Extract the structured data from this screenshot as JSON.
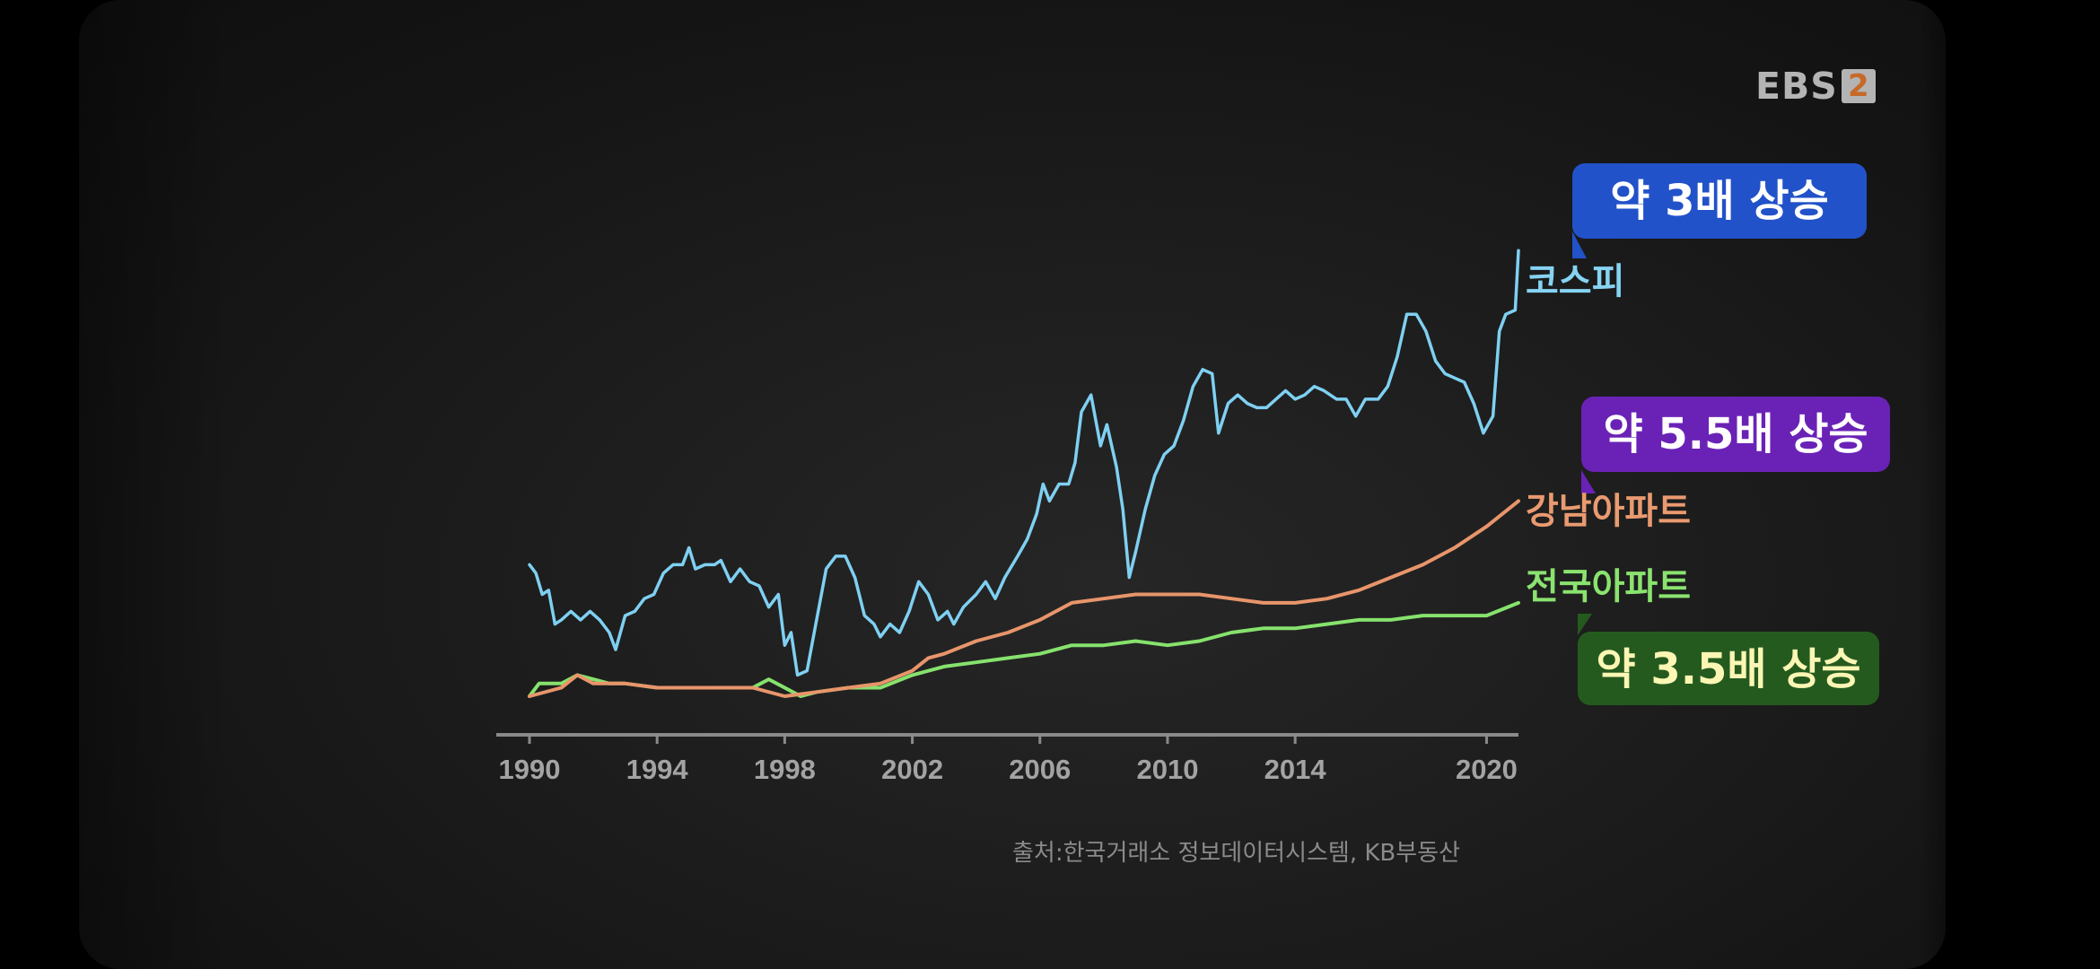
{
  "logo": {
    "text": "EBS",
    "number": "2"
  },
  "source": "출처:한국거래소 정보데이터시스템, KB부동산",
  "callouts": [
    {
      "text": "약 3배 상승",
      "bg": "#2252c9",
      "color": "#ffffff"
    },
    {
      "text": "약 5.5배 상승",
      "bg": "#6a22b6",
      "color": "#ffffff"
    },
    {
      "text": "약 3.5배 상승",
      "bg": "#255a1f",
      "color": "#fbf6b4"
    }
  ],
  "chart_data": {
    "type": "line",
    "xlim": [
      1990,
      2021
    ],
    "ylim": [
      0,
      100
    ],
    "x_ticks": [
      1990,
      1994,
      1998,
      2002,
      2006,
      2010,
      2014,
      2020
    ],
    "x_tick_labels": [
      "1990",
      "1994",
      "1998",
      "2002",
      "2006",
      "2010",
      "2014",
      "2020"
    ],
    "grid": false,
    "series": [
      {
        "name": "코스피",
        "color": "#7fd0f2",
        "points": [
          [
            1990,
            31
          ],
          [
            1990.2,
            29
          ],
          [
            1990.4,
            24
          ],
          [
            1990.6,
            25
          ],
          [
            1990.8,
            17
          ],
          [
            1991,
            18
          ],
          [
            1991.3,
            20
          ],
          [
            1991.6,
            18
          ],
          [
            1991.9,
            20
          ],
          [
            1992.2,
            18
          ],
          [
            1992.5,
            15
          ],
          [
            1992.7,
            11
          ],
          [
            1993,
            19
          ],
          [
            1993.3,
            20
          ],
          [
            1993.6,
            23
          ],
          [
            1993.9,
            24
          ],
          [
            1994.2,
            29
          ],
          [
            1994.5,
            31
          ],
          [
            1994.8,
            31
          ],
          [
            1995,
            35
          ],
          [
            1995.2,
            30
          ],
          [
            1995.5,
            31
          ],
          [
            1995.8,
            31
          ],
          [
            1996,
            32
          ],
          [
            1996.3,
            27
          ],
          [
            1996.6,
            30
          ],
          [
            1996.9,
            27
          ],
          [
            1997.2,
            26
          ],
          [
            1997.5,
            21
          ],
          [
            1997.8,
            24
          ],
          [
            1998,
            12
          ],
          [
            1998.2,
            15
          ],
          [
            1998.4,
            5
          ],
          [
            1998.7,
            6
          ],
          [
            1999,
            18
          ],
          [
            1999.3,
            30
          ],
          [
            1999.6,
            33
          ],
          [
            1999.9,
            33
          ],
          [
            2000.2,
            28
          ],
          [
            2000.5,
            19
          ],
          [
            2000.8,
            17
          ],
          [
            2001,
            14
          ],
          [
            2001.3,
            17
          ],
          [
            2001.6,
            15
          ],
          [
            2001.9,
            20
          ],
          [
            2002.2,
            27
          ],
          [
            2002.5,
            24
          ],
          [
            2002.8,
            18
          ],
          [
            2003.1,
            20
          ],
          [
            2003.3,
            17
          ],
          [
            2003.6,
            21
          ],
          [
            2004,
            24
          ],
          [
            2004.3,
            27
          ],
          [
            2004.6,
            23
          ],
          [
            2004.9,
            28
          ],
          [
            2005.3,
            33
          ],
          [
            2005.6,
            37
          ],
          [
            2005.9,
            43
          ],
          [
            2006.1,
            50
          ],
          [
            2006.3,
            46
          ],
          [
            2006.6,
            50
          ],
          [
            2006.9,
            50
          ],
          [
            2007.1,
            55
          ],
          [
            2007.3,
            67
          ],
          [
            2007.6,
            71
          ],
          [
            2007.9,
            59
          ],
          [
            2008.1,
            64
          ],
          [
            2008.4,
            54
          ],
          [
            2008.6,
            44
          ],
          [
            2008.8,
            28
          ],
          [
            2009,
            34
          ],
          [
            2009.3,
            44
          ],
          [
            2009.6,
            52
          ],
          [
            2009.9,
            57
          ],
          [
            2010.2,
            59
          ],
          [
            2010.5,
            65
          ],
          [
            2010.8,
            73
          ],
          [
            2011.1,
            77
          ],
          [
            2011.4,
            76
          ],
          [
            2011.6,
            62
          ],
          [
            2011.9,
            69
          ],
          [
            2012.2,
            71
          ],
          [
            2012.5,
            69
          ],
          [
            2012.8,
            68
          ],
          [
            2013.1,
            68
          ],
          [
            2013.4,
            70
          ],
          [
            2013.7,
            72
          ],
          [
            2014,
            70
          ],
          [
            2014.3,
            71
          ],
          [
            2014.6,
            73
          ],
          [
            2014.9,
            72
          ],
          [
            2015.3,
            70
          ],
          [
            2015.6,
            70
          ],
          [
            2015.9,
            66
          ],
          [
            2016.2,
            70
          ],
          [
            2016.6,
            70
          ],
          [
            2016.9,
            73
          ],
          [
            2017.2,
            80
          ],
          [
            2017.5,
            90
          ],
          [
            2017.8,
            90
          ],
          [
            2018.1,
            86
          ],
          [
            2018.4,
            79
          ],
          [
            2018.7,
            76
          ],
          [
            2019,
            75
          ],
          [
            2019.3,
            74
          ],
          [
            2019.6,
            69
          ],
          [
            2019.9,
            62
          ],
          [
            2020.2,
            66
          ],
          [
            2020.4,
            86
          ],
          [
            2020.6,
            90
          ],
          [
            2020.9,
            91
          ],
          [
            2021,
            105
          ]
        ]
      },
      {
        "name": "강남아파트",
        "color": "#e8956b",
        "points": [
          [
            1990,
            0
          ],
          [
            1991,
            2
          ],
          [
            1991.5,
            5
          ],
          [
            1992,
            3
          ],
          [
            1992.5,
            3
          ],
          [
            1993,
            3
          ],
          [
            1994,
            2
          ],
          [
            1995,
            2
          ],
          [
            1996,
            2
          ],
          [
            1997,
            2
          ],
          [
            1998,
            0
          ],
          [
            1999,
            1
          ],
          [
            2000,
            2
          ],
          [
            2001,
            3
          ],
          [
            2002,
            6
          ],
          [
            2002.5,
            9
          ],
          [
            2003,
            10
          ],
          [
            2004,
            13
          ],
          [
            2005,
            15
          ],
          [
            2006,
            18
          ],
          [
            2007,
            22
          ],
          [
            2008,
            23
          ],
          [
            2009,
            24
          ],
          [
            2010,
            24
          ],
          [
            2011,
            24
          ],
          [
            2012,
            23
          ],
          [
            2013,
            22
          ],
          [
            2014,
            22
          ],
          [
            2015,
            23
          ],
          [
            2016,
            25
          ],
          [
            2017,
            28
          ],
          [
            2018,
            31
          ],
          [
            2019,
            35
          ],
          [
            2020,
            40
          ],
          [
            2021,
            46
          ]
        ]
      },
      {
        "name": "전국아파트",
        "color": "#86e26d",
        "points": [
          [
            1990,
            0
          ],
          [
            1990.3,
            3
          ],
          [
            1991,
            3
          ],
          [
            1991.5,
            5
          ],
          [
            1992,
            4
          ],
          [
            1992.5,
            3
          ],
          [
            1993,
            3
          ],
          [
            1994,
            2
          ],
          [
            1995,
            2
          ],
          [
            1996,
            2
          ],
          [
            1997,
            2
          ],
          [
            1997.5,
            4
          ],
          [
            1998,
            2
          ],
          [
            1998.5,
            0
          ],
          [
            1999,
            1
          ],
          [
            2000,
            2
          ],
          [
            2001,
            2
          ],
          [
            2002,
            5
          ],
          [
            2003,
            7
          ],
          [
            2004,
            8
          ],
          [
            2005,
            9
          ],
          [
            2006,
            10
          ],
          [
            2007,
            12
          ],
          [
            2008,
            12
          ],
          [
            2009,
            13
          ],
          [
            2010,
            12
          ],
          [
            2011,
            13
          ],
          [
            2012,
            15
          ],
          [
            2013,
            16
          ],
          [
            2014,
            16
          ],
          [
            2015,
            17
          ],
          [
            2016,
            18
          ],
          [
            2017,
            18
          ],
          [
            2018,
            19
          ],
          [
            2019,
            19
          ],
          [
            2020,
            19
          ],
          [
            2021,
            22
          ]
        ]
      }
    ]
  }
}
